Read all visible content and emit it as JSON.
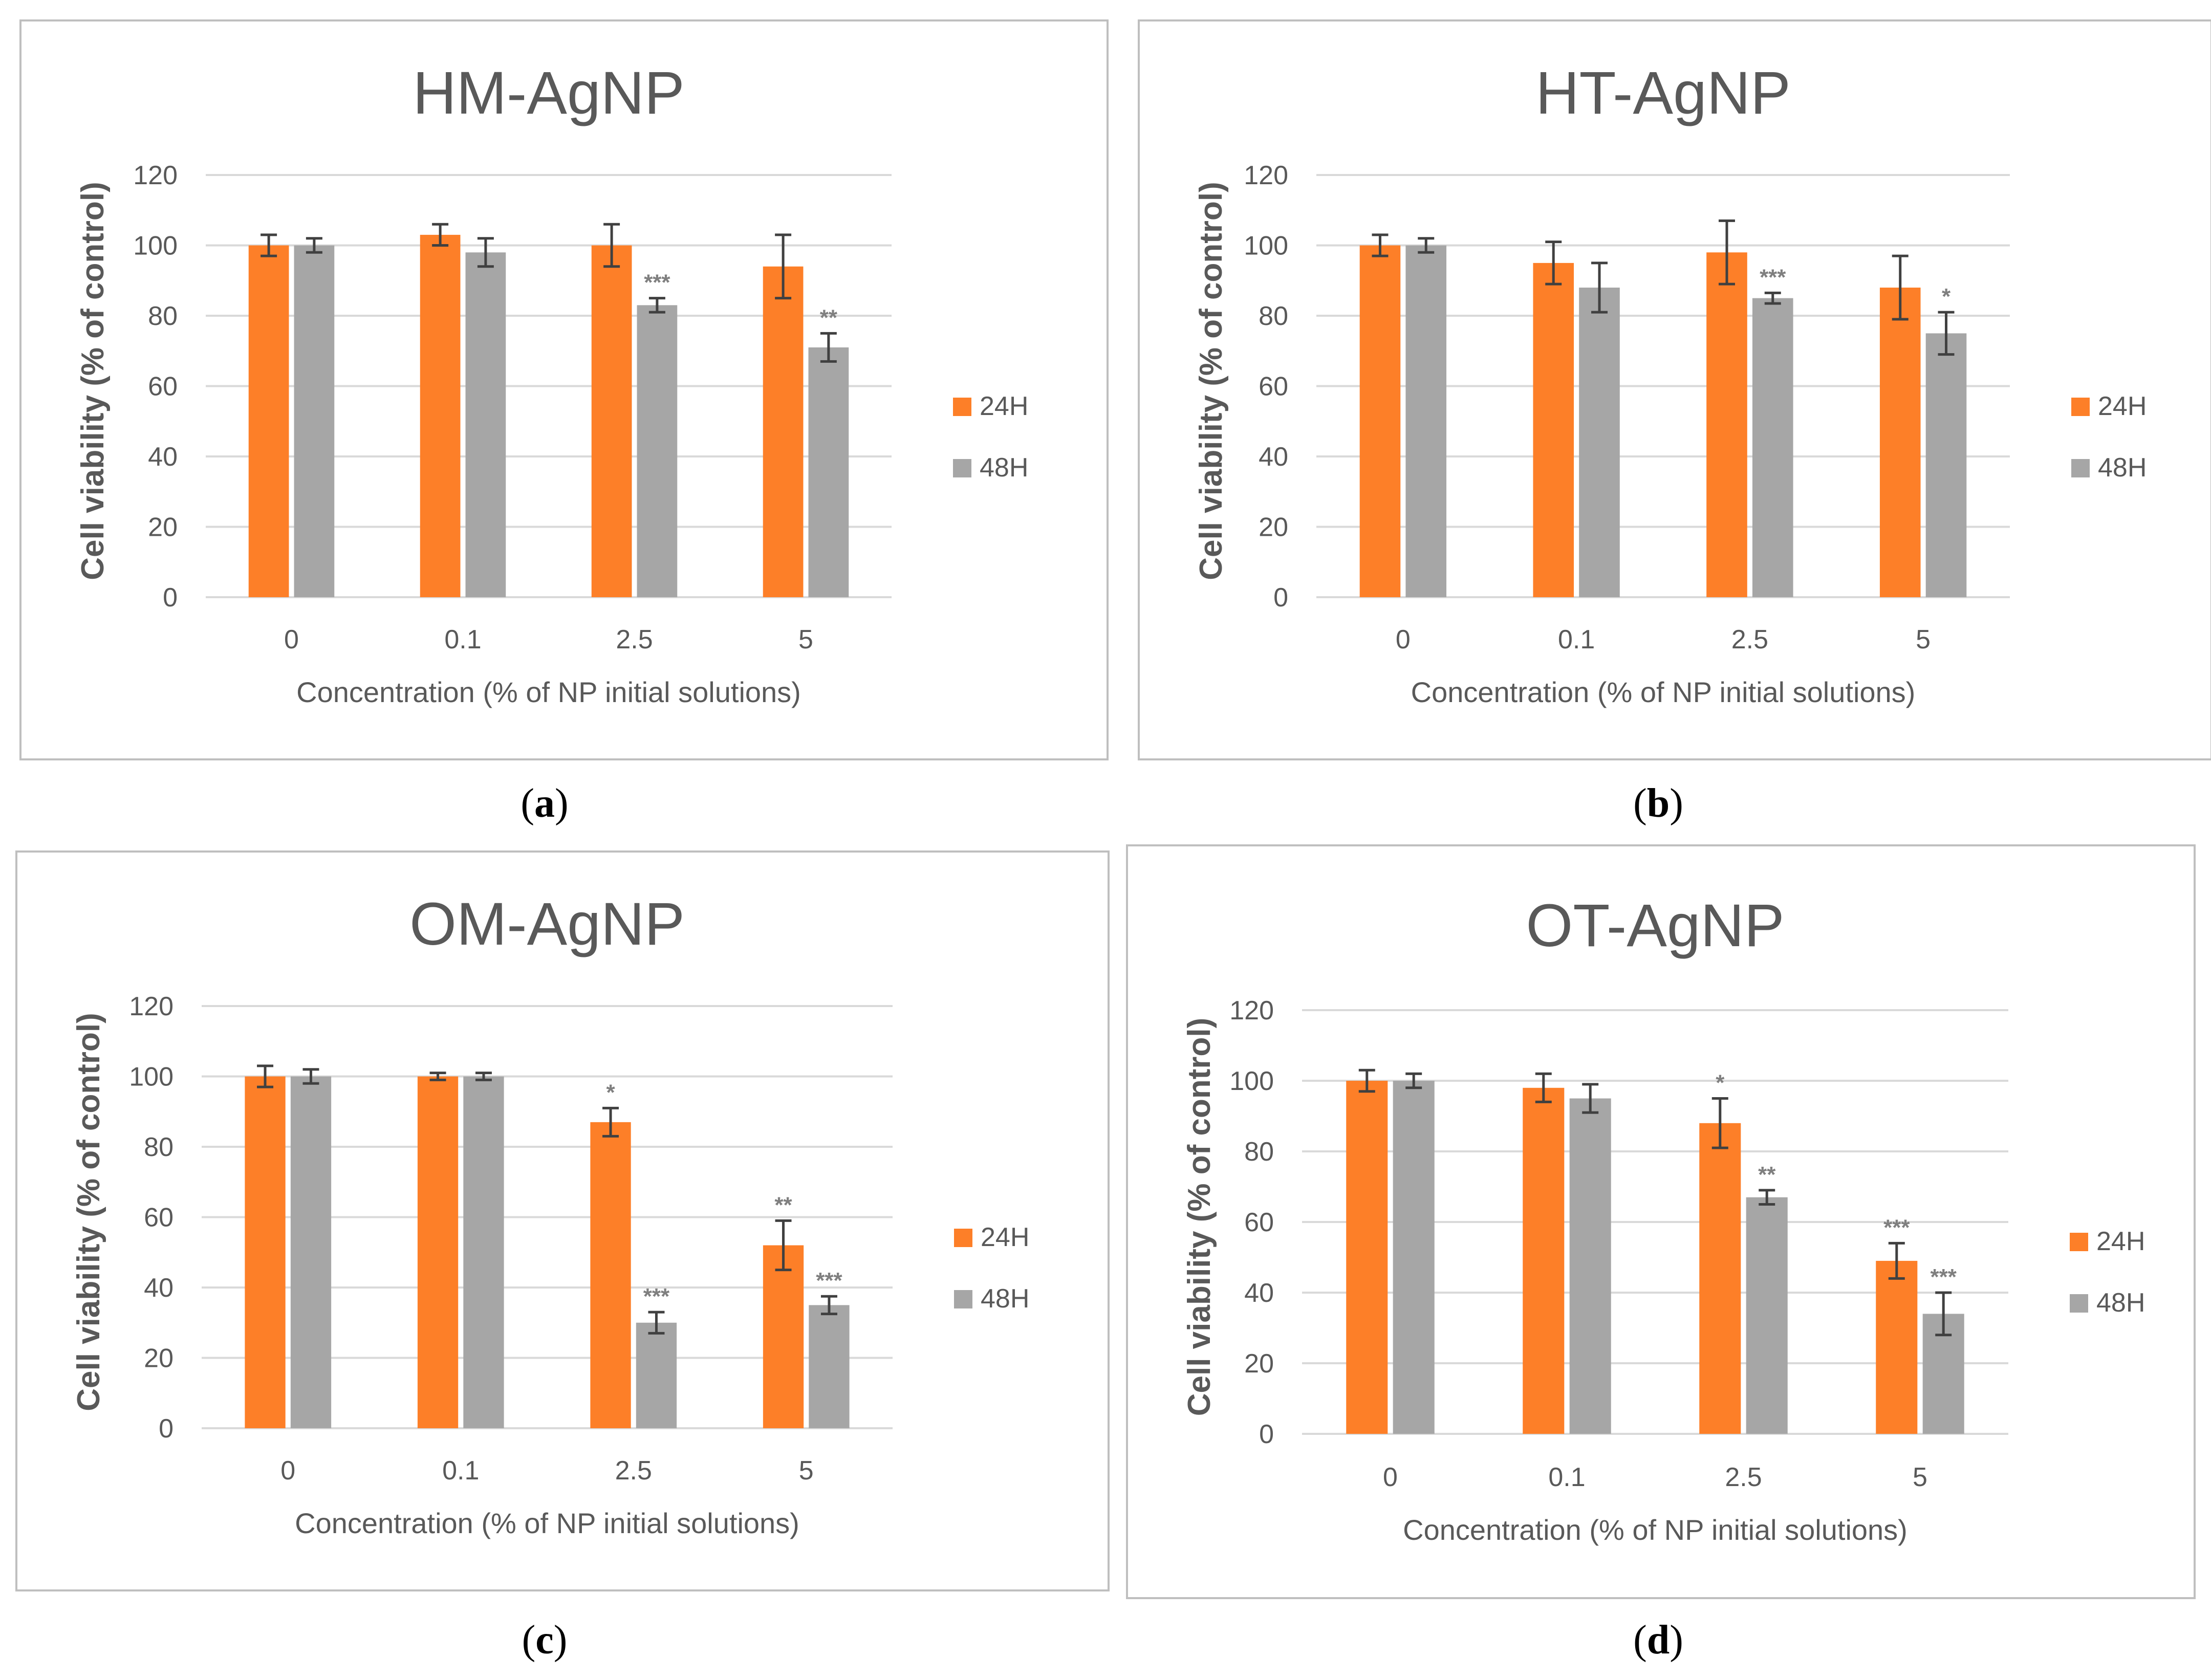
{
  "chart_data": [
    {
      "type": "bar",
      "title": "HM-AgNP",
      "caption": "a",
      "xlabel": "Concentration (% of NP initial solutions)",
      "ylabel": "Cell viability (% of control)",
      "ylim": [
        0,
        120
      ],
      "yticks": [
        0,
        20,
        40,
        60,
        80,
        100,
        120
      ],
      "categories": [
        "0",
        "0.1",
        "2.5",
        "5"
      ],
      "series": [
        {
          "name": "24H",
          "values": [
            100,
            103,
            100,
            94
          ],
          "errors": [
            3,
            3,
            6,
            9
          ],
          "sig": [
            "",
            "",
            "",
            ""
          ]
        },
        {
          "name": "48H",
          "values": [
            100,
            98,
            83,
            71
          ],
          "errors": [
            2,
            4,
            2,
            4
          ],
          "sig": [
            "",
            "",
            "***",
            "**"
          ]
        }
      ]
    },
    {
      "type": "bar",
      "title": "HT-AgNP",
      "caption": "b",
      "xlabel": "Concentration (% of NP initial solutions)",
      "ylabel": "Cell viability (% of control)",
      "ylim": [
        0,
        120
      ],
      "yticks": [
        0,
        20,
        40,
        60,
        80,
        100,
        120
      ],
      "categories": [
        "0",
        "0.1",
        "2.5",
        "5"
      ],
      "series": [
        {
          "name": "24H",
          "values": [
            100,
            95,
            98,
            88
          ],
          "errors": [
            3,
            6,
            9,
            9
          ],
          "sig": [
            "",
            "",
            "",
            ""
          ]
        },
        {
          "name": "48H",
          "values": [
            100,
            88,
            85,
            75
          ],
          "errors": [
            2,
            7,
            1.5,
            6
          ],
          "sig": [
            "",
            "",
            "***",
            "*"
          ]
        }
      ]
    },
    {
      "type": "bar",
      "title": "OM-AgNP",
      "caption": "c",
      "xlabel": "Concentration (% of NP initial solutions)",
      "ylabel": "Cell viability (% of control)",
      "ylim": [
        0,
        120
      ],
      "yticks": [
        0,
        20,
        40,
        60,
        80,
        100,
        120
      ],
      "categories": [
        "0",
        "0.1",
        "2.5",
        "5"
      ],
      "series": [
        {
          "name": "24H",
          "values": [
            100,
            100,
            87,
            52
          ],
          "errors": [
            3,
            1,
            4,
            7
          ],
          "sig": [
            "",
            "",
            "*",
            "**"
          ]
        },
        {
          "name": "48H",
          "values": [
            100,
            100,
            30,
            35
          ],
          "errors": [
            2,
            1,
            3,
            2.5
          ],
          "sig": [
            "",
            "",
            "***",
            "***"
          ]
        }
      ]
    },
    {
      "type": "bar",
      "title": "OT-AgNP",
      "caption": "d",
      "xlabel": "Concentration (% of NP initial solutions)",
      "ylabel": "Cell viability (% of control)",
      "ylim": [
        0,
        120
      ],
      "yticks": [
        0,
        20,
        40,
        60,
        80,
        100,
        120
      ],
      "categories": [
        "0",
        "0.1",
        "2.5",
        "5"
      ],
      "series": [
        {
          "name": "24H",
          "values": [
            100,
            98,
            88,
            49
          ],
          "errors": [
            3,
            4,
            7,
            5
          ],
          "sig": [
            "",
            "",
            "*",
            "***"
          ]
        },
        {
          "name": "48H",
          "values": [
            100,
            95,
            67,
            34
          ],
          "errors": [
            2,
            4,
            2,
            6
          ],
          "sig": [
            "",
            "",
            "**",
            "***"
          ]
        }
      ]
    }
  ],
  "colors": {
    "series_24h": "#fd7f28",
    "series_48h": "#a6a6a6",
    "text": "#595959",
    "title": "#595959",
    "grid": "#d9d9d9",
    "sig": "#7f7f7f"
  }
}
